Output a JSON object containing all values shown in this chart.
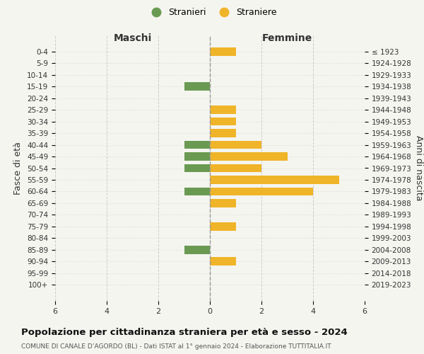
{
  "age_groups": [
    "100+",
    "95-99",
    "90-94",
    "85-89",
    "80-84",
    "75-79",
    "70-74",
    "65-69",
    "60-64",
    "55-59",
    "50-54",
    "45-49",
    "40-44",
    "35-39",
    "30-34",
    "25-29",
    "20-24",
    "15-19",
    "10-14",
    "5-9",
    "0-4"
  ],
  "birth_years": [
    "≤ 1923",
    "1924-1928",
    "1929-1933",
    "1934-1938",
    "1939-1943",
    "1944-1948",
    "1949-1953",
    "1954-1958",
    "1959-1963",
    "1964-1968",
    "1969-1973",
    "1974-1978",
    "1979-1983",
    "1984-1988",
    "1989-1993",
    "1994-1998",
    "1999-2003",
    "2004-2008",
    "2009-2013",
    "2014-2018",
    "2019-2023"
  ],
  "maschi": [
    0,
    0,
    0,
    1,
    0,
    0,
    0,
    0,
    1,
    0,
    1,
    1,
    1,
    0,
    0,
    0,
    0,
    1,
    0,
    0,
    0
  ],
  "femmine": [
    0,
    0,
    1,
    0,
    0,
    1,
    0,
    1,
    4,
    5,
    2,
    3,
    2,
    1,
    1,
    1,
    0,
    0,
    0,
    0,
    1
  ],
  "color_maschi": "#6a9a52",
  "color_femmine": "#f0b429",
  "background_color": "#f5f5f0",
  "title": "Popolazione per cittadinanza straniera per età e sesso - 2024",
  "subtitle": "COMUNE DI CANALE D’AGORDO (BL) - Dati ISTAT al 1° gennaio 2024 - Elaborazione TUTTITALIA.IT",
  "xlabel_left": "Maschi",
  "xlabel_right": "Femmine",
  "ylabel_left": "Fasce di età",
  "ylabel_right": "Anni di nascita",
  "legend_maschi": "Stranieri",
  "legend_femmine": "Straniere",
  "xlim": 6,
  "bar_height": 0.7,
  "grid_color": "#cccccc"
}
